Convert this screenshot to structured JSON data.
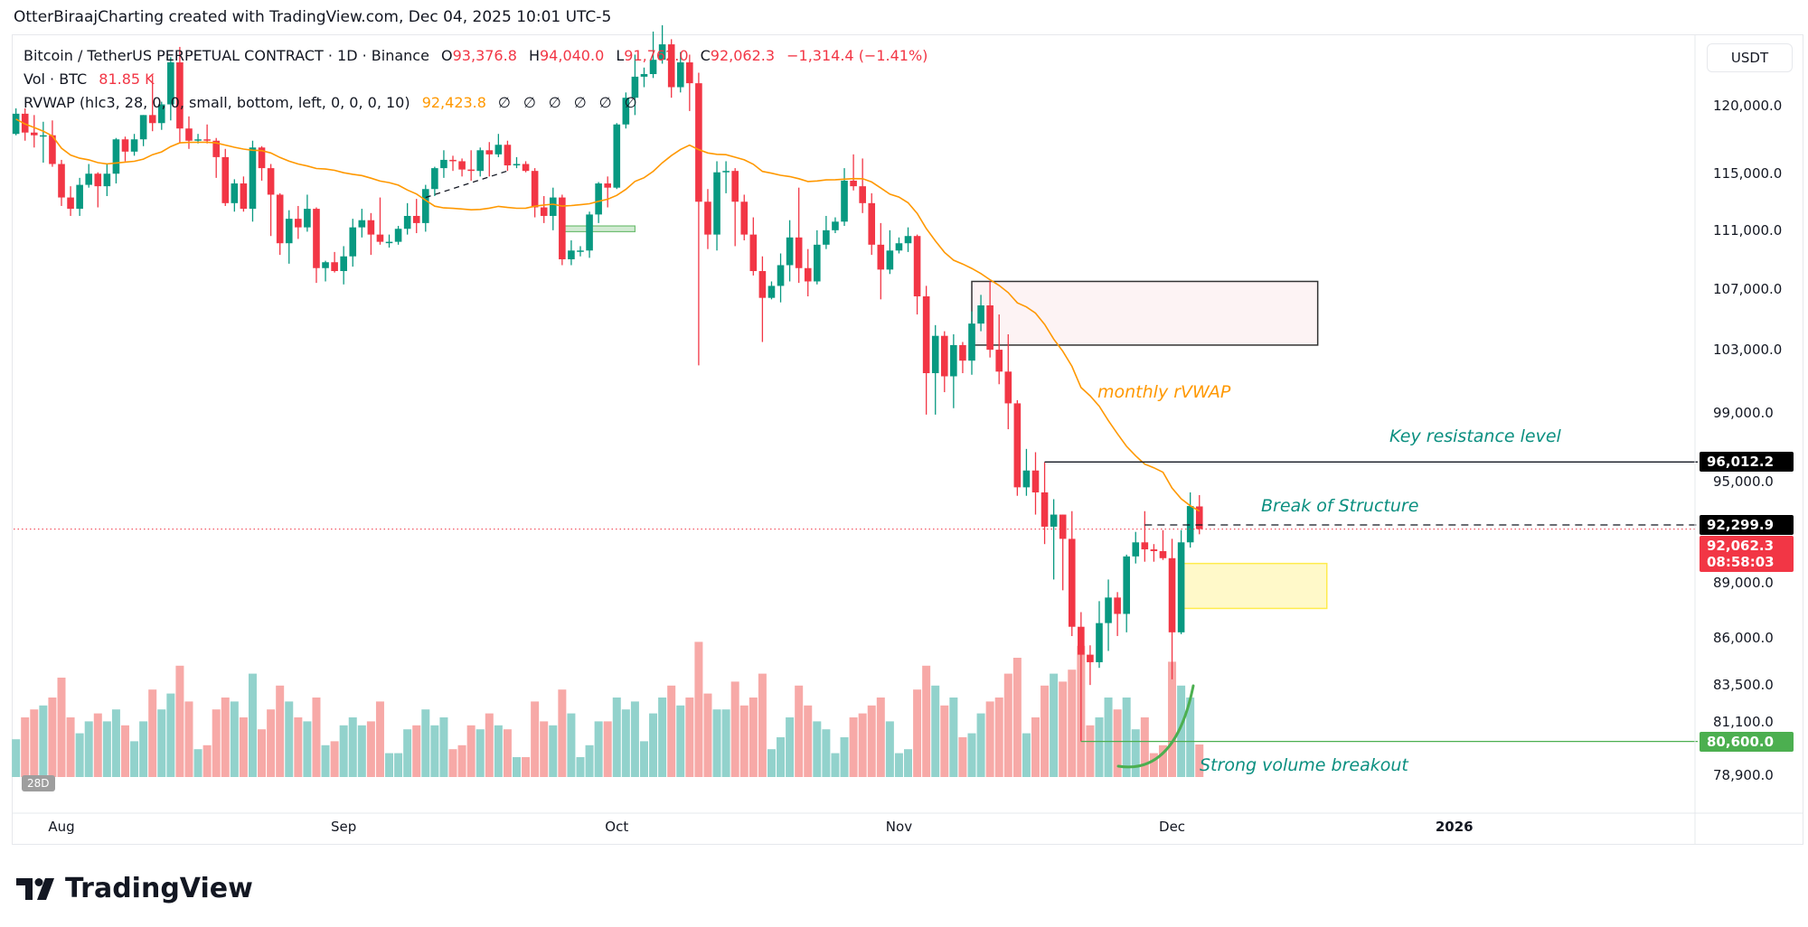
{
  "topline": "OtterBiraajCharting created with TradingView.com, Dec 04, 2025 10:01 UTC-5",
  "legend": {
    "symbol": "Bitcoin / TetherUS PERPETUAL CONTRACT · 1D · Binance",
    "o_label": "O",
    "o": "93,376.8",
    "h_label": "H",
    "h": "94,040.0",
    "l_label": "L",
    "l": "91,762.0",
    "c_label": "C",
    "c": "92,062.3",
    "change": "−1,314.4 (−1.41%)",
    "vol_label": "Vol · BTC",
    "vol": "81.85 K",
    "rvwap_label": "RVWAP (hlc3, 28, 0, 0, small, bottom, left, 0, 0, 0, 10)",
    "rvwap": "92,423.8",
    "empty_values": [
      "∅",
      "∅",
      "∅",
      "∅",
      "∅",
      "∅"
    ]
  },
  "currency": "USDT",
  "colors": {
    "up": "#089981",
    "down": "#f23645",
    "up_vol": "#92d2cc",
    "down_vol": "#f7a9a7",
    "rvwap": "#ff9800",
    "teal_text": "#0b8f80",
    "green_line": "#4caf50"
  },
  "price_axis": {
    "scale": "log",
    "ticks": [
      "120,000.0",
      "115,000.0",
      "111,000.0",
      "107,000.0",
      "103,000.0",
      "99,000.0",
      "95,000.0",
      "89,000.0",
      "86,000.0",
      "83,500.0",
      "81,100.0",
      "78,900.0"
    ]
  },
  "price_labels": {
    "resistance": "96,012.2",
    "bos": "92,299.9",
    "last": "92,062.3",
    "countdown": "08:58:03",
    "support": "80,600.0"
  },
  "time_axis": [
    {
      "label": "Aug",
      "date": "2025-08-01"
    },
    {
      "label": "Sep",
      "date": "2025-09-01"
    },
    {
      "label": "Oct",
      "date": "2025-10-01"
    },
    {
      "label": "Nov",
      "date": "2025-11-01"
    },
    {
      "label": "Dec",
      "date": "2025-12-01"
    },
    {
      "label": "2026",
      "date": "2026-01-01",
      "bold": true
    }
  ],
  "volume_badge": "28D",
  "annotations": {
    "rvwap_text": "monthly rVWAP",
    "resistance_text": "Key resistance level",
    "bos_text": "Break of Structure",
    "volume_text": "Strong volume breakout",
    "resistance": {
      "price": 96012.2,
      "from": "2025-11-17"
    },
    "bos": {
      "price": 92299.9,
      "from": "2025-11-28"
    },
    "support": {
      "price": 80600,
      "from": "2025-11-21"
    },
    "supply_zone": {
      "top": 107500,
      "bottom": 103300,
      "from": "2025-11-09",
      "to": "2025-12-17"
    },
    "demand_zone": {
      "top": 90100,
      "bottom": 87600,
      "from": "2025-12-02",
      "to": "2025-12-18"
    },
    "small_zone": {
      "top": 111300,
      "bottom": 110900,
      "from": "2025-09-25",
      "to": "2025-10-03"
    },
    "trendline": {
      "from": [
        "2025-09-10",
        113300
      ],
      "to": [
        "2025-09-19",
        115200
      ]
    }
  },
  "chart_data": {
    "type": "candlestick",
    "fields": [
      "date",
      "open",
      "high",
      "low",
      "close",
      "volume_k"
    ],
    "rvwap_length": 28,
    "candles": [
      [
        "2025-07-27",
        117900,
        119800,
        117800,
        119400,
        95
      ],
      [
        "2025-07-28",
        119400,
        119800,
        117400,
        118000,
        150
      ],
      [
        "2025-07-29",
        118000,
        119300,
        116900,
        117800,
        170
      ],
      [
        "2025-07-30",
        117800,
        118800,
        115800,
        117800,
        180
      ],
      [
        "2025-07-31",
        117800,
        118900,
        115500,
        115700,
        200
      ],
      [
        "2025-08-01",
        115700,
        116000,
        112700,
        113300,
        250
      ],
      [
        "2025-08-02",
        113300,
        114100,
        112000,
        112500,
        150
      ],
      [
        "2025-08-03",
        112500,
        114700,
        112000,
        114200,
        110
      ],
      [
        "2025-08-04",
        114200,
        115700,
        114000,
        115000,
        140
      ],
      [
        "2025-08-05",
        115000,
        115100,
        112600,
        114100,
        160
      ],
      [
        "2025-08-06",
        114100,
        115700,
        113400,
        115000,
        140
      ],
      [
        "2025-08-07",
        115000,
        117600,
        114300,
        117500,
        170
      ],
      [
        "2025-08-08",
        117500,
        117700,
        115900,
        116600,
        130
      ],
      [
        "2025-08-09",
        116600,
        117900,
        116300,
        117500,
        90
      ],
      [
        "2025-08-10",
        117500,
        119300,
        117000,
        119300,
        140
      ],
      [
        "2025-08-11",
        119300,
        122300,
        118100,
        118700,
        220
      ],
      [
        "2025-08-12",
        118700,
        120300,
        118200,
        120100,
        170
      ],
      [
        "2025-08-13",
        120100,
        123700,
        118900,
        123300,
        210
      ],
      [
        "2025-08-14",
        123300,
        124500,
        117200,
        118300,
        280
      ],
      [
        "2025-08-15",
        118300,
        119200,
        116800,
        117400,
        190
      ],
      [
        "2025-08-16",
        117400,
        117900,
        117200,
        117500,
        70
      ],
      [
        "2025-08-17",
        117500,
        118600,
        117200,
        117400,
        80
      ],
      [
        "2025-08-18",
        117400,
        117600,
        114700,
        116200,
        170
      ],
      [
        "2025-08-19",
        116200,
        116800,
        112700,
        112900,
        200
      ],
      [
        "2025-08-20",
        112900,
        114600,
        112300,
        114300,
        190
      ],
      [
        "2025-08-21",
        114300,
        114800,
        112300,
        112500,
        150
      ],
      [
        "2025-08-22",
        112500,
        117400,
        111600,
        116900,
        260
      ],
      [
        "2025-08-23",
        116900,
        117000,
        114500,
        115400,
        120
      ],
      [
        "2025-08-24",
        115400,
        115700,
        110600,
        113500,
        170
      ],
      [
        "2025-08-25",
        113500,
        113600,
        109300,
        110100,
        230
      ],
      [
        "2025-08-26",
        110100,
        112400,
        108700,
        111800,
        190
      ],
      [
        "2025-08-27",
        111800,
        112700,
        110400,
        111200,
        150
      ],
      [
        "2025-08-28",
        111200,
        113500,
        110900,
        112500,
        140
      ],
      [
        "2025-08-29",
        112500,
        112600,
        107400,
        108400,
        200
      ],
      [
        "2025-08-30",
        108400,
        108900,
        107500,
        108800,
        80
      ],
      [
        "2025-08-31",
        108800,
        109500,
        108100,
        108200,
        90
      ],
      [
        "2025-09-01",
        108200,
        109900,
        107300,
        109200,
        130
      ],
      [
        "2025-09-02",
        109200,
        111800,
        108500,
        111200,
        150
      ],
      [
        "2025-09-03",
        111200,
        112500,
        110500,
        111700,
        130
      ],
      [
        "2025-09-04",
        111700,
        112200,
        109300,
        110700,
        140
      ],
      [
        "2025-09-05",
        110700,
        113300,
        110000,
        110200,
        190
      ],
      [
        "2025-09-06",
        110200,
        110700,
        109800,
        110200,
        60
      ],
      [
        "2025-09-07",
        110200,
        111300,
        110000,
        111100,
        60
      ],
      [
        "2025-09-08",
        111100,
        112900,
        110700,
        112000,
        120
      ],
      [
        "2025-09-09",
        112000,
        113200,
        110800,
        111500,
        130
      ],
      [
        "2025-09-10",
        111500,
        114200,
        110900,
        113900,
        170
      ],
      [
        "2025-09-11",
        113900,
        115500,
        113400,
        115400,
        130
      ],
      [
        "2025-09-12",
        115400,
        116700,
        114700,
        116000,
        150
      ],
      [
        "2025-09-13",
        116000,
        116300,
        115200,
        115900,
        70
      ],
      [
        "2025-09-14",
        115900,
        116100,
        114800,
        115300,
        80
      ],
      [
        "2025-09-15",
        115300,
        116700,
        114500,
        115200,
        130
      ],
      [
        "2025-09-16",
        115200,
        116900,
        114800,
        116700,
        120
      ],
      [
        "2025-09-17",
        116700,
        117300,
        114800,
        116400,
        160
      ],
      [
        "2025-09-18",
        116400,
        117900,
        116200,
        117100,
        130
      ],
      [
        "2025-09-19",
        117100,
        117400,
        115200,
        115600,
        120
      ],
      [
        "2025-09-20",
        115600,
        116200,
        115400,
        115700,
        50
      ],
      [
        "2025-09-21",
        115700,
        115900,
        115100,
        115200,
        50
      ],
      [
        "2025-09-22",
        115200,
        115400,
        111900,
        112600,
        190
      ],
      [
        "2025-09-23",
        112600,
        113400,
        111500,
        112000,
        140
      ],
      [
        "2025-09-24",
        112000,
        114000,
        111000,
        113300,
        130
      ],
      [
        "2025-09-25",
        113300,
        113500,
        108600,
        109000,
        220
      ],
      [
        "2025-09-26",
        109000,
        110300,
        108600,
        109600,
        160
      ],
      [
        "2025-09-27",
        109600,
        109900,
        109200,
        109600,
        50
      ],
      [
        "2025-09-28",
        109600,
        112300,
        109100,
        112100,
        80
      ],
      [
        "2025-09-29",
        112100,
        114400,
        111500,
        114300,
        140
      ],
      [
        "2025-09-30",
        114300,
        114800,
        112600,
        114000,
        140
      ],
      [
        "2025-10-01",
        114000,
        118700,
        113900,
        118600,
        200
      ],
      [
        "2025-10-02",
        118600,
        121000,
        118300,
        120600,
        170
      ],
      [
        "2025-10-03",
        120600,
        123900,
        119300,
        122200,
        190
      ],
      [
        "2025-10-04",
        122200,
        122900,
        121400,
        122400,
        90
      ],
      [
        "2025-10-05",
        122400,
        125700,
        122100,
        123500,
        160
      ],
      [
        "2025-10-06",
        123500,
        126200,
        123200,
        124700,
        200
      ],
      [
        "2025-10-07",
        124700,
        125100,
        120600,
        121400,
        230
      ],
      [
        "2025-10-08",
        121400,
        124100,
        121000,
        123300,
        180
      ],
      [
        "2025-10-09",
        123300,
        123900,
        119600,
        121700,
        200
      ],
      [
        "2025-10-10",
        121700,
        122500,
        102000,
        113000,
        340
      ],
      [
        "2025-10-11",
        113000,
        113900,
        109700,
        110700,
        210
      ],
      [
        "2025-10-12",
        110700,
        115900,
        109600,
        115100,
        170
      ],
      [
        "2025-10-13",
        115100,
        115900,
        113600,
        115200,
        170
      ],
      [
        "2025-10-14",
        115200,
        115400,
        109900,
        113000,
        240
      ],
      [
        "2025-10-15",
        113000,
        113500,
        110300,
        110700,
        180
      ],
      [
        "2025-10-16",
        110700,
        111900,
        107900,
        108200,
        200
      ],
      [
        "2025-10-17",
        108200,
        109200,
        103500,
        106400,
        260
      ],
      [
        "2025-10-18",
        106400,
        107500,
        106300,
        107200,
        70
      ],
      [
        "2025-10-19",
        107200,
        109400,
        106100,
        108600,
        100
      ],
      [
        "2025-10-20",
        108600,
        111700,
        107500,
        110500,
        150
      ],
      [
        "2025-10-21",
        110500,
        114000,
        107400,
        108400,
        230
      ],
      [
        "2025-10-22",
        108400,
        109700,
        106500,
        107500,
        180
      ],
      [
        "2025-10-23",
        107500,
        111000,
        107300,
        110000,
        140
      ],
      [
        "2025-10-24",
        110000,
        112000,
        109700,
        111000,
        120
      ],
      [
        "2025-10-25",
        111000,
        111900,
        110800,
        111600,
        60
      ],
      [
        "2025-10-26",
        111600,
        115400,
        111300,
        114500,
        100
      ],
      [
        "2025-10-27",
        114500,
        116400,
        113800,
        114100,
        150
      ],
      [
        "2025-10-28",
        114100,
        116100,
        112200,
        112900,
        160
      ],
      [
        "2025-10-29",
        112900,
        113600,
        109300,
        110000,
        180
      ],
      [
        "2025-10-30",
        110000,
        111500,
        106300,
        108300,
        200
      ],
      [
        "2025-10-31",
        108300,
        111000,
        108000,
        109600,
        140
      ],
      [
        "2025-11-01",
        109600,
        110500,
        109400,
        110100,
        60
      ],
      [
        "2025-11-02",
        110100,
        111200,
        109500,
        110600,
        70
      ],
      [
        "2025-11-03",
        110600,
        110700,
        105300,
        106500,
        220
      ],
      [
        "2025-11-04",
        106500,
        107200,
        98900,
        101500,
        280
      ],
      [
        "2025-11-05",
        101500,
        104600,
        98900,
        103900,
        230
      ],
      [
        "2025-11-06",
        103900,
        104200,
        100300,
        101300,
        180
      ],
      [
        "2025-11-07",
        101300,
        104000,
        99300,
        103300,
        200
      ],
      [
        "2025-11-08",
        103300,
        103500,
        101500,
        102300,
        100
      ],
      [
        "2025-11-09",
        102300,
        105500,
        101400,
        104700,
        110
      ],
      [
        "2025-11-10",
        104700,
        106600,
        104200,
        105900,
        160
      ],
      [
        "2025-11-11",
        105900,
        107500,
        102500,
        103000,
        190
      ],
      [
        "2025-11-12",
        103000,
        105300,
        100800,
        101600,
        200
      ],
      [
        "2025-11-13",
        101600,
        104000,
        98000,
        99600,
        260
      ],
      [
        "2025-11-14",
        99600,
        99800,
        94000,
        94500,
        300
      ],
      [
        "2025-11-15",
        94500,
        96800,
        94000,
        95500,
        110
      ],
      [
        "2025-11-16",
        95500,
        96600,
        92900,
        94200,
        150
      ],
      [
        "2025-11-17",
        94200,
        96000,
        91200,
        92200,
        230
      ],
      [
        "2025-11-18",
        92200,
        93800,
        89200,
        92900,
        260
      ],
      [
        "2025-11-19",
        92900,
        92900,
        88600,
        91500,
        240
      ],
      [
        "2025-11-20",
        91500,
        93100,
        86100,
        86600,
        270
      ],
      [
        "2025-11-21",
        86600,
        87400,
        80600,
        85100,
        330
      ],
      [
        "2025-11-22",
        85100,
        85600,
        83500,
        84700,
        130
      ],
      [
        "2025-11-23",
        84700,
        88000,
        84400,
        86800,
        150
      ],
      [
        "2025-11-24",
        86800,
        89200,
        85300,
        88200,
        200
      ],
      [
        "2025-11-25",
        88200,
        88500,
        86100,
        87300,
        170
      ],
      [
        "2025-11-26",
        87300,
        90600,
        86300,
        90500,
        200
      ],
      [
        "2025-11-27",
        90500,
        91900,
        90100,
        91300,
        120
      ],
      [
        "2025-11-28",
        91300,
        93100,
        90200,
        90900,
        150
      ],
      [
        "2025-11-29",
        90900,
        91200,
        90200,
        90800,
        60
      ],
      [
        "2025-11-30",
        90800,
        92000,
        90300,
        90400,
        80
      ],
      [
        "2025-12-01",
        90400,
        91500,
        83800,
        86300,
        290
      ],
      [
        "2025-12-02",
        86300,
        92000,
        86200,
        91300,
        230
      ],
      [
        "2025-12-03",
        91300,
        94200,
        91000,
        93400,
        200
      ],
      [
        "2025-12-04",
        93376.8,
        94040,
        91762,
        92062.3,
        81.85
      ]
    ]
  },
  "logo_text": "TradingView"
}
